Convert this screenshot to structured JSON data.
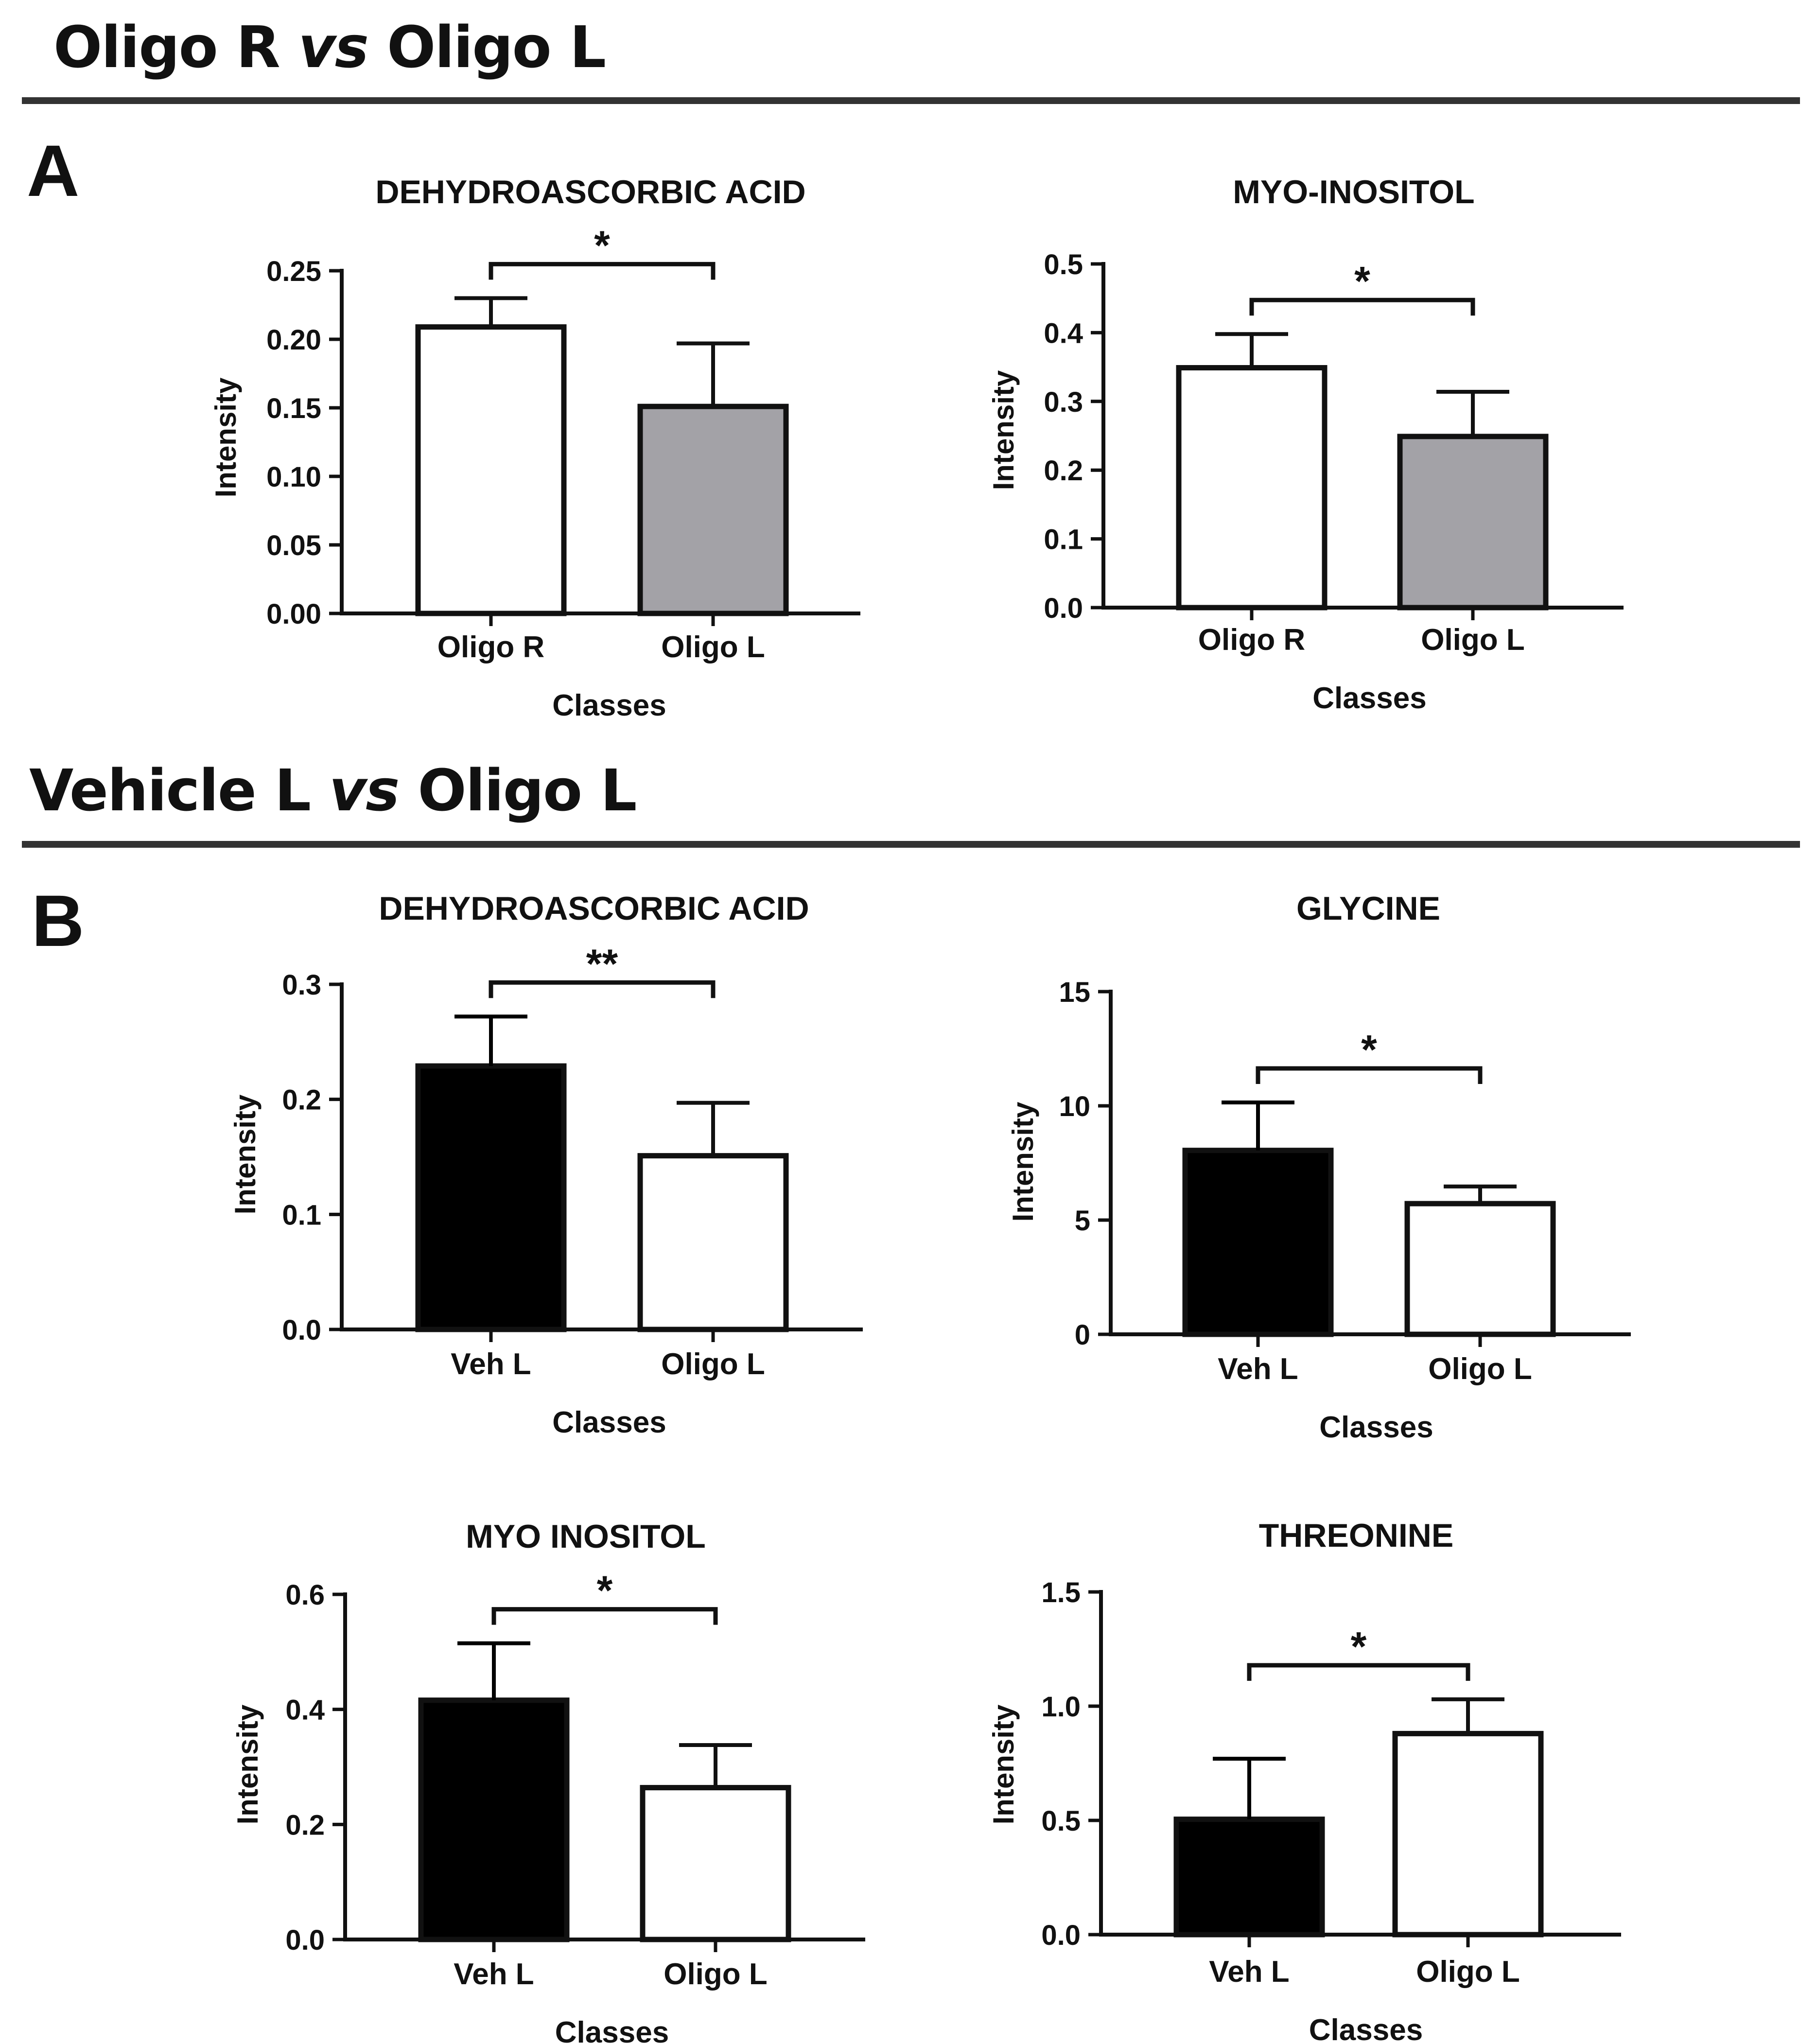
{
  "sections": [
    {
      "id": "A",
      "title_prefix": "Oligo R ",
      "title_vs": "vs",
      "title_suffix": " Oligo L",
      "panel_letter": "A"
    },
    {
      "id": "B",
      "title_prefix": "Vehicle L ",
      "title_vs": "vs",
      "title_suffix": " Oligo L",
      "panel_letter": "B"
    }
  ],
  "colors": {
    "white_bar": "#ffffff",
    "gray_bar": "#a3a3a7",
    "black_bar": "#000000",
    "axis": "#111111"
  },
  "chart_data": [
    {
      "type": "bar",
      "title": "DEHYDROASCORBIC ACID",
      "xlabel": "Classes",
      "ylabel": "Intensity",
      "categories": [
        "Oligo R",
        "Oligo L"
      ],
      "values": [
        0.209,
        0.151
      ],
      "errors": [
        0.021,
        0.046
      ],
      "bar_colors": [
        "#ffffff",
        "#a3a3a7"
      ],
      "ylim": [
        0,
        0.25
      ],
      "yticks": [
        "0.00",
        "0.05",
        "0.10",
        "0.15",
        "0.20",
        "0.25"
      ],
      "significance": "*"
    },
    {
      "type": "bar",
      "title": "MYO-INOSITOL",
      "xlabel": "Classes",
      "ylabel": "Intensity",
      "categories": [
        "Oligo R",
        "Oligo L"
      ],
      "values": [
        0.349,
        0.249
      ],
      "errors": [
        0.049,
        0.065
      ],
      "bar_colors": [
        "#ffffff",
        "#a3a3a7"
      ],
      "ylim": [
        0,
        0.5
      ],
      "yticks": [
        "0.0",
        "0.1",
        "0.2",
        "0.3",
        "0.4",
        "0.5"
      ],
      "significance": "*"
    },
    {
      "type": "bar",
      "title": "DEHYDROASCORBIC ACID",
      "xlabel": "Classes",
      "ylabel": "Intensity",
      "categories": [
        "Veh L",
        "Oligo L"
      ],
      "values": [
        0.229,
        0.151
      ],
      "errors": [
        0.043,
        0.046
      ],
      "bar_colors": [
        "#000000",
        "#ffffff"
      ],
      "ylim": [
        0,
        0.3
      ],
      "yticks": [
        "0.0",
        "0.1",
        "0.2",
        "0.3"
      ],
      "significance": "**"
    },
    {
      "type": "bar",
      "title": "GLYCINE",
      "xlabel": "Classes",
      "ylabel": "Intensity",
      "categories": [
        "Veh L",
        "Oligo L"
      ],
      "values": [
        8.05,
        5.72
      ],
      "errors": [
        2.1,
        0.75
      ],
      "bar_colors": [
        "#000000",
        "#ffffff"
      ],
      "ylim": [
        0,
        15
      ],
      "yticks": [
        "0",
        "5",
        "10",
        "15"
      ],
      "significance": "*"
    },
    {
      "type": "bar",
      "title": "MYO INOSITOL",
      "xlabel": "Classes",
      "ylabel": "Intensity",
      "categories": [
        "Veh L",
        "Oligo L"
      ],
      "values": [
        0.416,
        0.264
      ],
      "errors": [
        0.099,
        0.074
      ],
      "bar_colors": [
        "#000000",
        "#ffffff"
      ],
      "ylim": [
        0,
        0.6
      ],
      "yticks": [
        "0.0",
        "0.2",
        "0.4",
        "0.6"
      ],
      "significance": "*"
    },
    {
      "type": "bar",
      "title": "THREONINE",
      "xlabel": "Classes",
      "ylabel": "Intensity",
      "categories": [
        "Veh L",
        "Oligo L"
      ],
      "values": [
        0.505,
        0.88
      ],
      "errors": [
        0.265,
        0.15
      ],
      "bar_colors": [
        "#000000",
        "#ffffff"
      ],
      "ylim": [
        0,
        1.5
      ],
      "yticks": [
        "0.0",
        "0.5",
        "1.0",
        "1.5"
      ],
      "significance": "*"
    }
  ]
}
